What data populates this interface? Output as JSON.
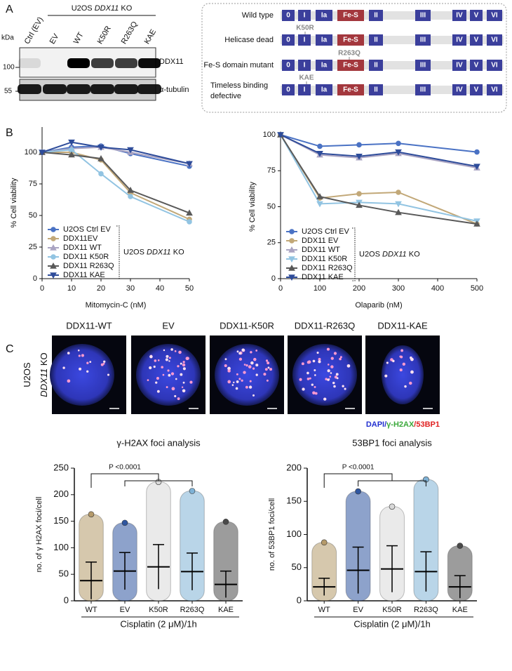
{
  "panel_letters": [
    "A",
    "B",
    "C"
  ],
  "panel_a": {
    "blot": {
      "header": {
        "prefix": "U2OS ",
        "gene": "DDX11",
        "suffix": " KO"
      },
      "lanes": [
        "Ctrl (EV)",
        "EV",
        "WT",
        "K50R",
        "R263Q",
        "KAE"
      ],
      "kda": "kDa",
      "markers": [
        "100",
        "55"
      ],
      "proteins": [
        "DDX11",
        "α-tubulin"
      ]
    },
    "domains": {
      "labels": [
        "0",
        "I",
        "Ia",
        "Fe-S",
        "II",
        "III",
        "IV",
        "V",
        "VI"
      ],
      "rows": [
        {
          "label": "Wild type"
        },
        {
          "label": "Helicase dead",
          "mutation": "K50R"
        },
        {
          "label": "Fe-S domain mutant",
          "mutation": "R263Q"
        },
        {
          "label": [
            "Timeless  binding",
            "defective"
          ],
          "mutation": "KAE"
        }
      ]
    }
  },
  "panel_c": {
    "images": [
      "DDX11-WT",
      "EV",
      "DDX11-K50R",
      "DDX11-R263Q",
      "DDX11-KAE"
    ],
    "side_label": {
      "line1": "U2OS",
      "gene": "DDX11",
      "suffix": " KO"
    },
    "legend": [
      "DAPI/",
      "γ-H2AX",
      "/53BP1"
    ]
  },
  "chart_data": [
    {
      "type": "line",
      "x_label": "Mitomycin-C (nM)",
      "y_label": "% Cell viability",
      "x": [
        0,
        10,
        20,
        30,
        50
      ],
      "xlim": [
        0,
        50
      ],
      "xticks": [
        0,
        10,
        20,
        30,
        40,
        50
      ],
      "ylim": [
        0,
        120
      ],
      "yticks": [
        0,
        25,
        50,
        75,
        100
      ],
      "series": [
        {
          "name": "U2OS Ctrl EV",
          "color": "#4a72c4",
          "marker": "circle",
          "values": [
            100,
            104,
            105,
            99,
            89
          ]
        },
        {
          "name": "DDX11EV",
          "color": "#c2a878",
          "marker": "circle",
          "values": [
            100,
            100,
            94,
            68,
            47
          ]
        },
        {
          "name": "DDX11 WT",
          "color": "#aaa4c2",
          "marker": "triangle",
          "values": [
            100,
            103,
            104,
            100,
            91
          ]
        },
        {
          "name": "DDX11 K50R",
          "color": "#92c4e2",
          "marker": "circle",
          "values": [
            100,
            102,
            83,
            65,
            45
          ]
        },
        {
          "name": "DDX11 R263Q",
          "color": "#595959",
          "marker": "triangle",
          "values": [
            100,
            98,
            95,
            70,
            52
          ]
        },
        {
          "name": "DDX11 KAE",
          "color": "#2e4c9a",
          "marker": "triangle-down",
          "values": [
            100,
            108,
            104,
            102,
            91
          ]
        }
      ],
      "legend_group": {
        "prefix": "U2OS ",
        "gene": "DDX11",
        "suffix": " KO"
      }
    },
    {
      "type": "line",
      "x_label": "Olaparib (nM)",
      "y_label": "% Cell viability",
      "x": [
        0,
        100,
        200,
        300,
        500
      ],
      "xlim": [
        0,
        500
      ],
      "xticks": [
        0,
        100,
        200,
        300,
        400,
        500
      ],
      "ylim": [
        0,
        100
      ],
      "yticks": [
        0,
        25,
        50,
        75,
        100
      ],
      "series": [
        {
          "name": "U2OS Ctrl EV",
          "color": "#4a72c4",
          "marker": "circle",
          "values": [
            100,
            92,
            93,
            94,
            88
          ]
        },
        {
          "name": "DDX11 EV",
          "color": "#c2a878",
          "marker": "circle",
          "values": [
            100,
            56,
            59,
            60,
            38
          ]
        },
        {
          "name": "DDX11 WT",
          "color": "#aaa4c2",
          "marker": "triangle",
          "values": [
            100,
            86,
            84,
            87,
            77
          ]
        },
        {
          "name": "DDX11 K50R",
          "color": "#92c4e2",
          "marker": "triangle-down",
          "values": [
            100,
            52,
            53,
            52,
            40
          ]
        },
        {
          "name": "DDX11 R263Q",
          "color": "#595959",
          "marker": "triangle",
          "values": [
            100,
            57,
            51,
            46,
            38
          ]
        },
        {
          "name": "DDX11 KAE",
          "color": "#2e4c9a",
          "marker": "triangle-down",
          "values": [
            100,
            87,
            85,
            88,
            78
          ]
        }
      ],
      "legend_group": {
        "prefix": "U2OS ",
        "gene": "DDX11",
        "suffix": " KO"
      }
    },
    {
      "type": "dot",
      "title": "γ-H2AX foci analysis",
      "y_label": "no. of γ H2AX foci/cell",
      "x_label": "Cisplatin (2 μM)/1h",
      "annotation": "P <0.0001",
      "categories": [
        "WT",
        "EV",
        "K50R",
        "R263Q",
        "KAE"
      ],
      "colors": [
        "#b59a6a",
        "#2f56a0",
        "#d9d9d9",
        "#7fb2d6",
        "#4a4a4a"
      ],
      "values": [
        38,
        56,
        64,
        55,
        31
      ],
      "errors": [
        35,
        35,
        42,
        35,
        25
      ],
      "max": [
        163,
        147,
        224,
        207,
        149
      ],
      "ylim": [
        0,
        250
      ],
      "yticks": [
        0,
        50,
        100,
        150,
        200,
        250
      ]
    },
    {
      "type": "dot",
      "title": "53BP1 foci analysis",
      "y_label": "no. of 53BP1 foci/cell",
      "x_label": "Cisplatin (2 μM)/1h",
      "annotation": "P <0.0001",
      "categories": [
        "WT",
        "EV",
        "K50R",
        "R263Q",
        "KAE"
      ],
      "colors": [
        "#b59a6a",
        "#2f56a0",
        "#d9d9d9",
        "#7fb2d6",
        "#4a4a4a"
      ],
      "values": [
        21,
        46,
        48,
        44,
        21
      ],
      "errors": [
        13,
        35,
        35,
        30,
        17
      ],
      "max": [
        88,
        165,
        142,
        183,
        83
      ],
      "ylim": [
        0,
        200
      ],
      "yticks": [
        0,
        50,
        100,
        150,
        200
      ]
    }
  ]
}
